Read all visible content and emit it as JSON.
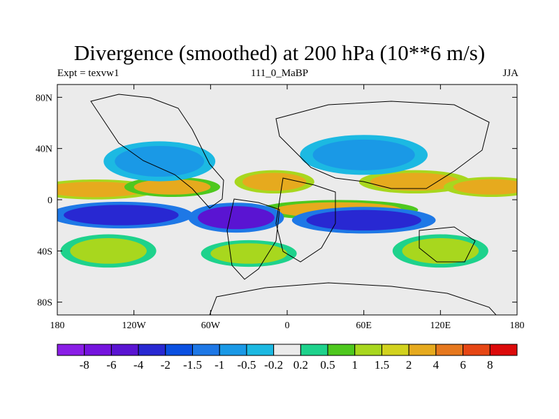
{
  "chart_data": {
    "type": "heatmap",
    "title": "Divergence (smoothed) at 200 hPa (10**6 m/s)",
    "subtitle_left": "Expt = texvw1",
    "subtitle_center": "111_0_MaBP",
    "subtitle_right": "JJA",
    "x_ticks": [
      "180",
      "120W",
      "60W",
      "0",
      "60E",
      "120E",
      "180"
    ],
    "x_tick_values": [
      -180,
      -120,
      -60,
      0,
      60,
      120,
      180
    ],
    "y_ticks": [
      "80N",
      "40N",
      "0",
      "40S",
      "80S"
    ],
    "y_tick_values": [
      80,
      40,
      0,
      -40,
      -80
    ],
    "xlim": [
      -180,
      180
    ],
    "ylim": [
      -90,
      90
    ],
    "levels": [
      "-8",
      "-6",
      "-4",
      "-2",
      "-1.5",
      "-1",
      "-0.5",
      "-0.2",
      "0.2",
      "0.5",
      "1",
      "1.5",
      "2",
      "4",
      "6",
      "8"
    ],
    "colors": [
      "#8a1ee6",
      "#7514de",
      "#5a14d2",
      "#2828d2",
      "#0a50e1",
      "#1e78e6",
      "#1a99e6",
      "#1cb9e2",
      "#ebebeb",
      "#1ed28c",
      "#4ec81e",
      "#a8d71e",
      "#d2d21e",
      "#e6aa1e",
      "#e6781e",
      "#e64614",
      "#dc0a0a"
    ],
    "features": [
      {
        "lon": -150,
        "lat": 8,
        "w": 40,
        "h": 6,
        "value": 3
      },
      {
        "lon": -90,
        "lat": 10,
        "w": 30,
        "h": 6,
        "value": 2
      },
      {
        "lon": -10,
        "lat": 14,
        "w": 25,
        "h": 7,
        "value": 3
      },
      {
        "lon": 100,
        "lat": 14,
        "w": 35,
        "h": 7,
        "value": 3
      },
      {
        "lon": 160,
        "lat": 10,
        "w": 30,
        "h": 6,
        "value": 3
      },
      {
        "lon": 40,
        "lat": -8,
        "w": 50,
        "h": 6,
        "value": 2
      },
      {
        "lon": -130,
        "lat": -12,
        "w": 45,
        "h": 8,
        "value": -3
      },
      {
        "lon": -40,
        "lat": -14,
        "w": 30,
        "h": 9,
        "value": -5
      },
      {
        "lon": 60,
        "lat": -16,
        "w": 45,
        "h": 8,
        "value": -3
      },
      {
        "lon": -100,
        "lat": 30,
        "w": 35,
        "h": 12,
        "value": -1
      },
      {
        "lon": 60,
        "lat": 35,
        "w": 40,
        "h": 12,
        "value": -1
      },
      {
        "lon": -140,
        "lat": -40,
        "w": 30,
        "h": 10,
        "value": 1
      },
      {
        "lon": -30,
        "lat": -42,
        "w": 30,
        "h": 8,
        "value": 1
      },
      {
        "lon": 120,
        "lat": -40,
        "w": 30,
        "h": 10,
        "value": 1
      }
    ]
  }
}
